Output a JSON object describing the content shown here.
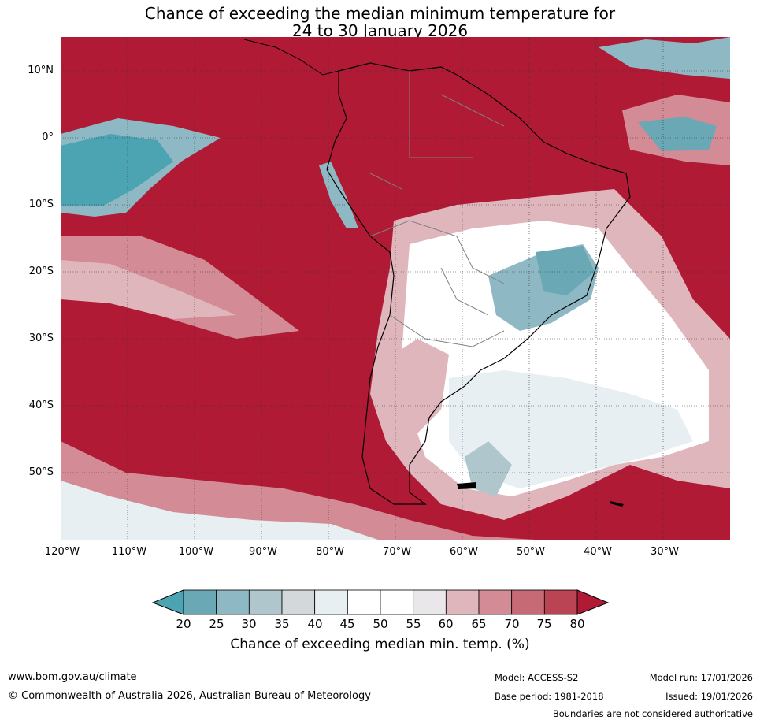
{
  "title": {
    "line1": "Chance of exceeding the median minimum temperature for",
    "line2": "24 to 30 January 2026"
  },
  "map": {
    "lat_labels": [
      "10°N",
      "0°",
      "10°S",
      "20°S",
      "30°S",
      "40°S",
      "50°S"
    ],
    "lon_labels": [
      "120°W",
      "110°W",
      "100°W",
      "90°W",
      "80°W",
      "70°W",
      "60°W",
      "50°W",
      "40°W",
      "30°W"
    ],
    "extent": {
      "lon_min": -120,
      "lon_max": -20,
      "lat_min": -60,
      "lat_max": 15
    },
    "background_color": "#b01a35"
  },
  "colorbar": {
    "ticks": [
      "20",
      "25",
      "30",
      "35",
      "40",
      "45",
      "50",
      "55",
      "60",
      "65",
      "70",
      "75",
      "80"
    ],
    "colors": [
      "#6ba8b6",
      "#8fb8c5",
      "#aec6cc",
      "#d3d9da",
      "#e8eff2",
      "#ffffff",
      "#ffffff",
      "#e9e7e9",
      "#e0b6bd",
      "#d38b95",
      "#c66a75",
      "#ba4454"
    ],
    "under_color": "#4ca3b2",
    "over_color": "#b01a35",
    "label": "Chance of exceeding median min. temp. (%)"
  },
  "footer": {
    "website": "www.bom.gov.au/climate",
    "copyright": "© Commonwealth of Australia 2026, Australian Bureau of Meteorology",
    "model": "Model: ACCESS-S2",
    "base_period": "Base period: 1981-2018",
    "model_run": "Model run: 17/01/2026",
    "issued": "Issued: 19/01/2026",
    "disclaimer": "Boundaries are not considered authoritative"
  }
}
